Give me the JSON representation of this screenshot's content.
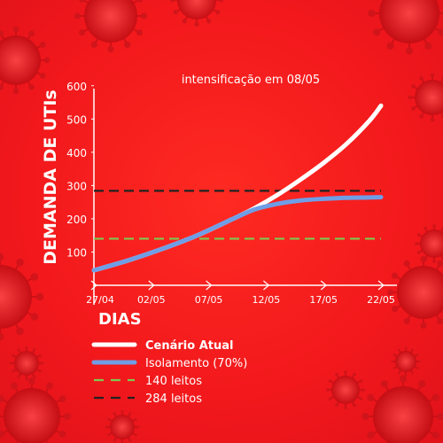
{
  "chart_data": {
    "type": "line",
    "title": "intensificação em 08/05",
    "ylabel": "DEMANDA DE UTIs",
    "xlabel": "DIAS",
    "ylim": [
      0,
      650
    ],
    "yticks": [
      100,
      200,
      300,
      400,
      500,
      600
    ],
    "xlim": [
      0,
      25
    ],
    "xticks": [
      {
        "x": 0,
        "label": "27/04"
      },
      {
        "x": 5,
        "label": "02/05"
      },
      {
        "x": 10,
        "label": "07/05"
      },
      {
        "x": 15,
        "label": "12/05"
      },
      {
        "x": 20,
        "label": "17/05"
      },
      {
        "x": 25,
        "label": "22/05"
      }
    ],
    "grid": false,
    "legend_position": "bottom-left",
    "series": [
      {
        "name": "Cenário Atual",
        "color": "#ffffff",
        "style": "solid",
        "x": [
          0,
          3,
          6,
          9,
          12,
          14,
          16,
          18,
          20,
          22,
          24,
          25
        ],
        "y": [
          45,
          75,
          110,
          150,
          198,
          232,
          272,
          318,
          368,
          425,
          495,
          540
        ]
      },
      {
        "name": "Isolamento (70%)",
        "color": "#6f9ee6",
        "style": "solid",
        "x": [
          0,
          3,
          6,
          9,
          12,
          14,
          16,
          18,
          20,
          22,
          24,
          25
        ],
        "y": [
          45,
          75,
          110,
          150,
          198,
          228,
          245,
          255,
          260,
          263,
          264,
          265
        ]
      },
      {
        "name": "140 leitos",
        "color": "#7ec850",
        "style": "dashed",
        "constant": 140
      },
      {
        "name": "284 leitos",
        "color": "#222222",
        "style": "dashed",
        "constant": 284
      }
    ]
  }
}
